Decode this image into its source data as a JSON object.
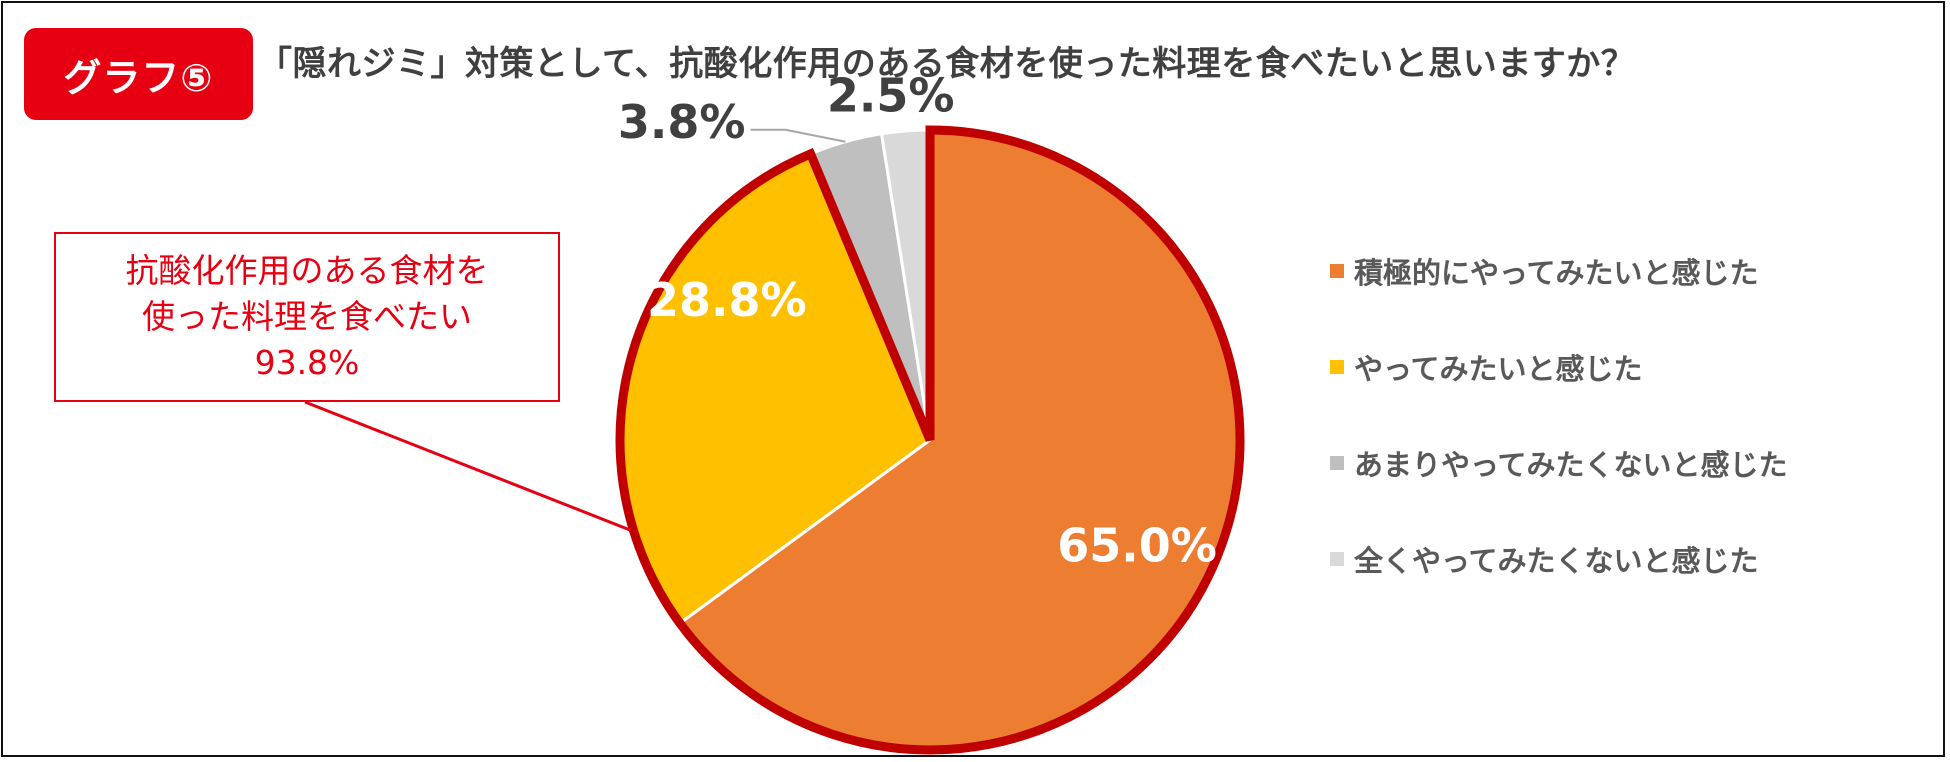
{
  "badge": {
    "label": "グラフ⑤"
  },
  "title": "「隠れジミ」対策として、抗酸化作用のある食材を使った料理を食べたいと思いますか？",
  "callout": {
    "line1": "抗酸化作用のある食材を",
    "line2": "使った料理を食べたい",
    "value": "93.8%"
  },
  "colors": {
    "accent": "#e60012",
    "highlight_border": "#c00000"
  },
  "chart_data": {
    "type": "pie",
    "title": "「隠れジミ」対策として、抗酸化作用のある食材を使った料理を食べたいと思いますか？",
    "legend_position": "right",
    "start_angle": "12 o'clock, clockwise",
    "series": [
      {
        "name": "積極的にやってみたいと感じた",
        "value": 65.0,
        "label": "65.0%",
        "color": "#ed7d31",
        "highlighted": true
      },
      {
        "name": "やってみたいと感じた",
        "value": 28.8,
        "label": "28.8%",
        "color": "#ffc000",
        "highlighted": true
      },
      {
        "name": "あまりやってみたくないと感じた",
        "value": 3.8,
        "label": "3.8%",
        "color": "#bfbfbf",
        "highlighted": false
      },
      {
        "name": "全くやってみたくないと感じた",
        "value": 2.5,
        "label": "2.5%",
        "color": "#d9d9d9",
        "highlighted": false
      }
    ],
    "highlight_total": {
      "label": "抗酸化作用のある食材を使った料理を食べたい",
      "value": 93.8
    }
  }
}
